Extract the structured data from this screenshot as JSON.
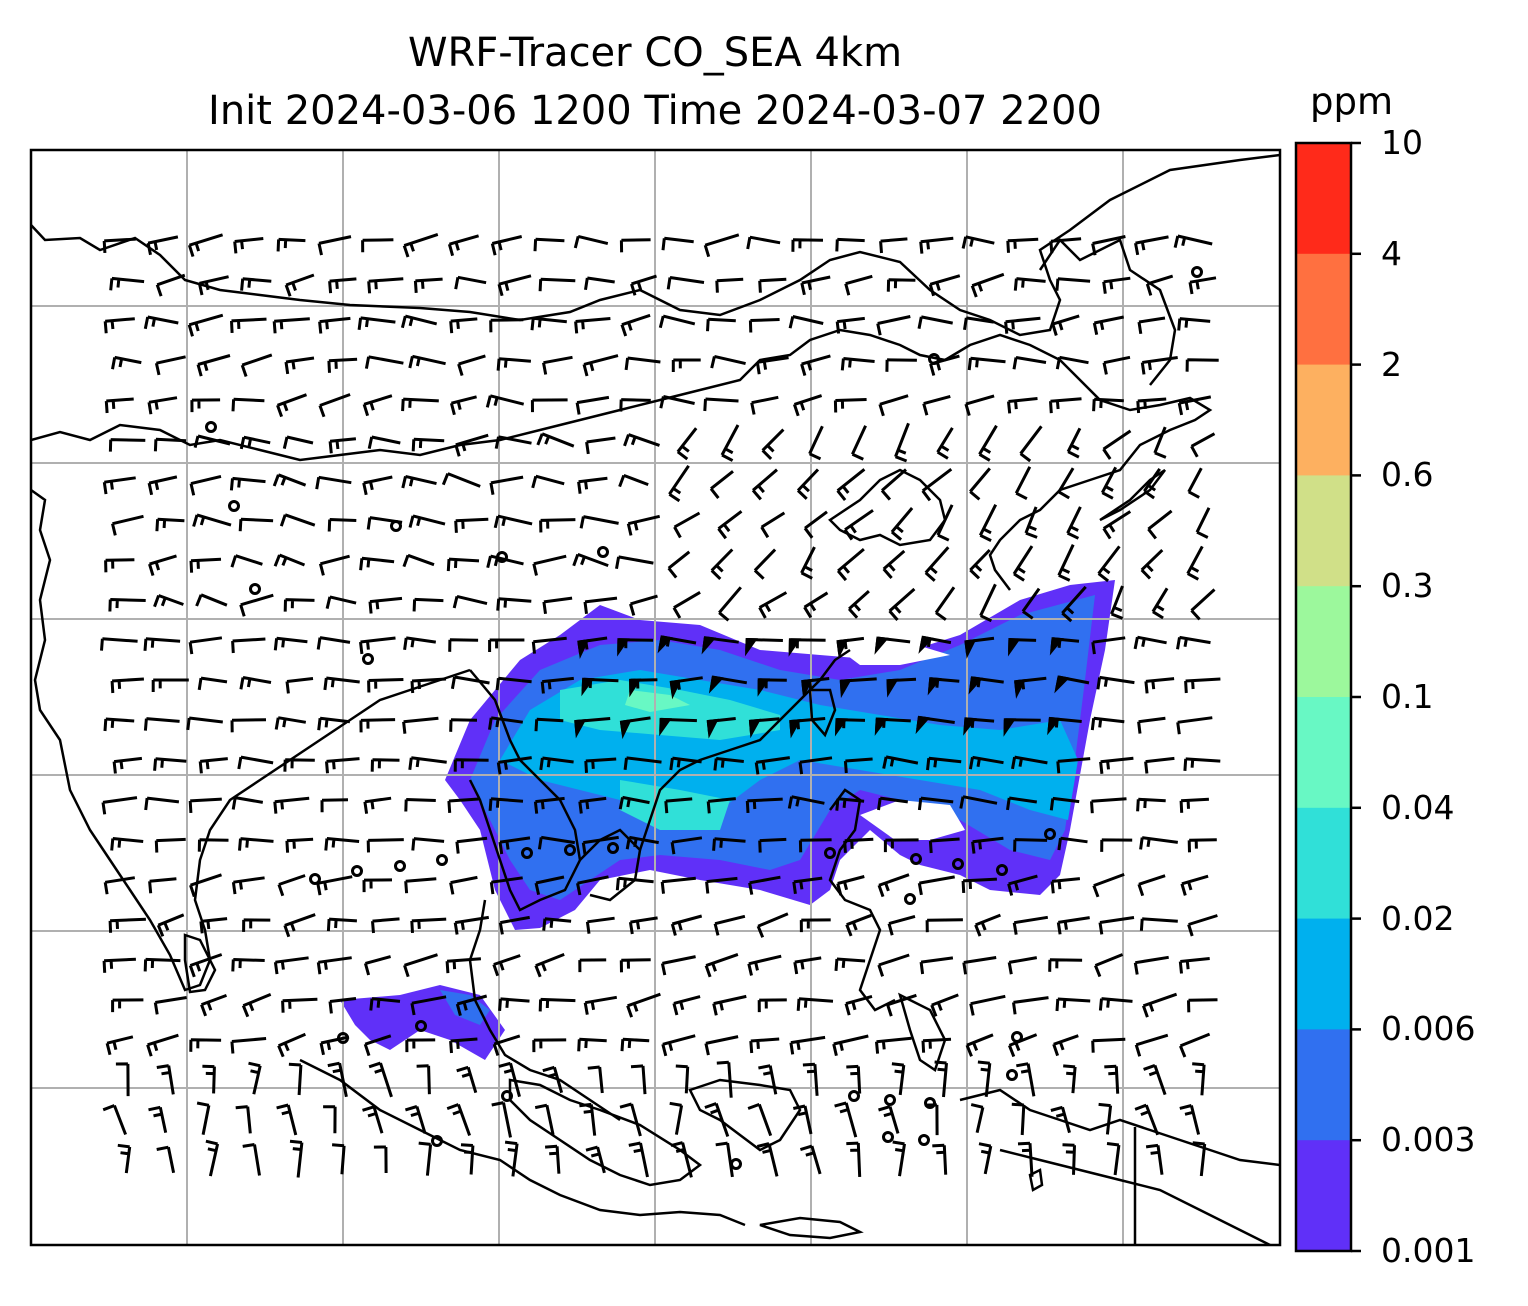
{
  "title": {
    "line1": "WRF-Tracer CO_SEA 4km",
    "line2": "Init 2024-03-06 1200 Time 2024-03-07 2200"
  },
  "colorbar": {
    "unit": "ppm",
    "ticks": [
      "10",
      "4",
      "2",
      "0.6",
      "0.3",
      "0.1",
      "0.04",
      "0.02",
      "0.006",
      "0.003",
      "0.001"
    ],
    "colors": [
      "#ff2a1a",
      "#ff7040",
      "#fdb060",
      "#d0e088",
      "#9cf89c",
      "#68f8c4",
      "#30e0d8",
      "#00b0ee",
      "#3070f0",
      "#6030f8"
    ]
  },
  "map": {
    "gridlines": true,
    "grid_color": "#b0b0b0",
    "coastline_color": "#000000",
    "field": "CO_SEA tracer concentration",
    "wind": "barbs"
  }
}
